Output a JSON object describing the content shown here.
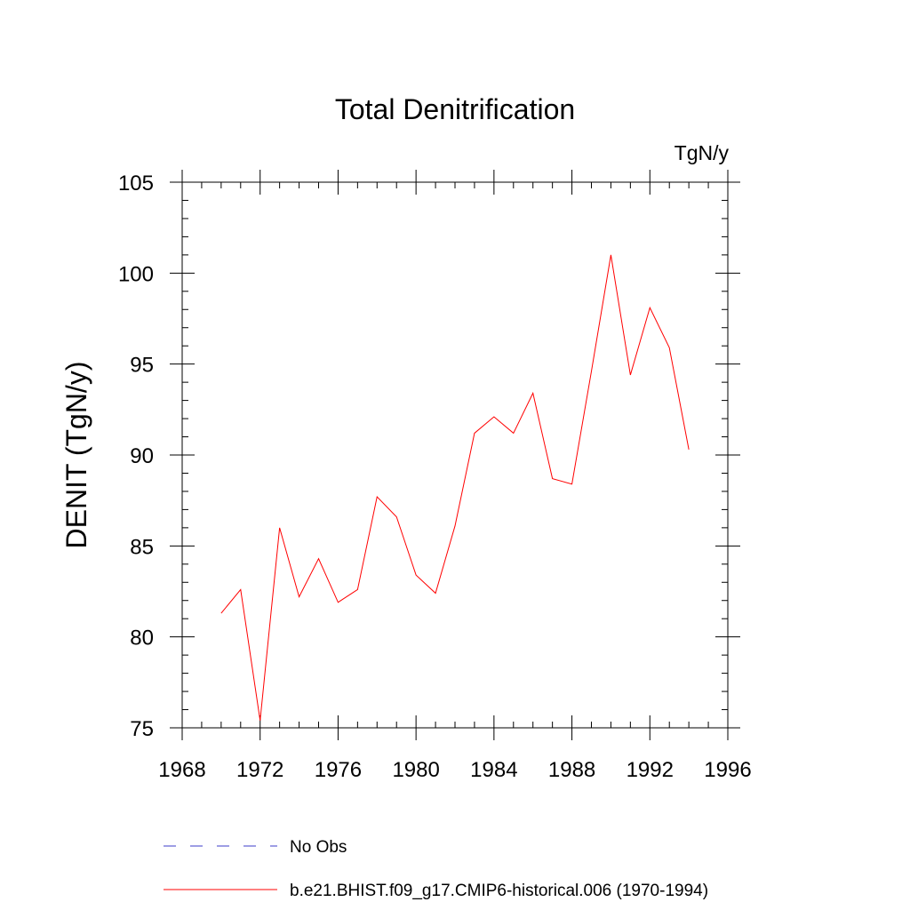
{
  "chart_data": {
    "type": "line",
    "title": "Total Denitrification",
    "units_label": "TgN/y",
    "xlabel": "",
    "ylabel": "DENIT  (TgN/y)",
    "xlim": [
      1968,
      1996
    ],
    "ylim": [
      75,
      105
    ],
    "x_ticks": [
      1968,
      1972,
      1976,
      1980,
      1984,
      1988,
      1992,
      1996
    ],
    "y_ticks": [
      75,
      80,
      85,
      90,
      95,
      100,
      105
    ],
    "x_minor_step": 1,
    "y_minor_step": 1,
    "grid": false,
    "legend_position": "bottom",
    "series": [
      {
        "name": "b.e21.BHIST.f09_g17.CMIP6-historical.006 (1970-1994)",
        "color": "#ff0000",
        "style": "solid",
        "x": [
          1970,
          1971,
          1972,
          1973,
          1974,
          1975,
          1976,
          1977,
          1978,
          1979,
          1980,
          1981,
          1982,
          1983,
          1984,
          1985,
          1986,
          1987,
          1988,
          1989,
          1990,
          1991,
          1992,
          1993,
          1994
        ],
        "y": [
          81.3,
          82.6,
          75.4,
          86.0,
          82.2,
          84.3,
          81.9,
          82.6,
          87.7,
          86.6,
          83.4,
          82.4,
          86.1,
          91.2,
          92.1,
          91.2,
          93.4,
          88.7,
          88.4,
          94.6,
          101.0,
          94.4,
          98.1,
          95.9,
          90.3
        ]
      }
    ],
    "legend": [
      {
        "label": "No Obs",
        "color": "#3c3cc8",
        "style": "dashed"
      },
      {
        "label": "b.e21.BHIST.f09_g17.CMIP6-historical.006 (1970-1994)",
        "color": "#ff0000",
        "style": "solid"
      }
    ]
  }
}
